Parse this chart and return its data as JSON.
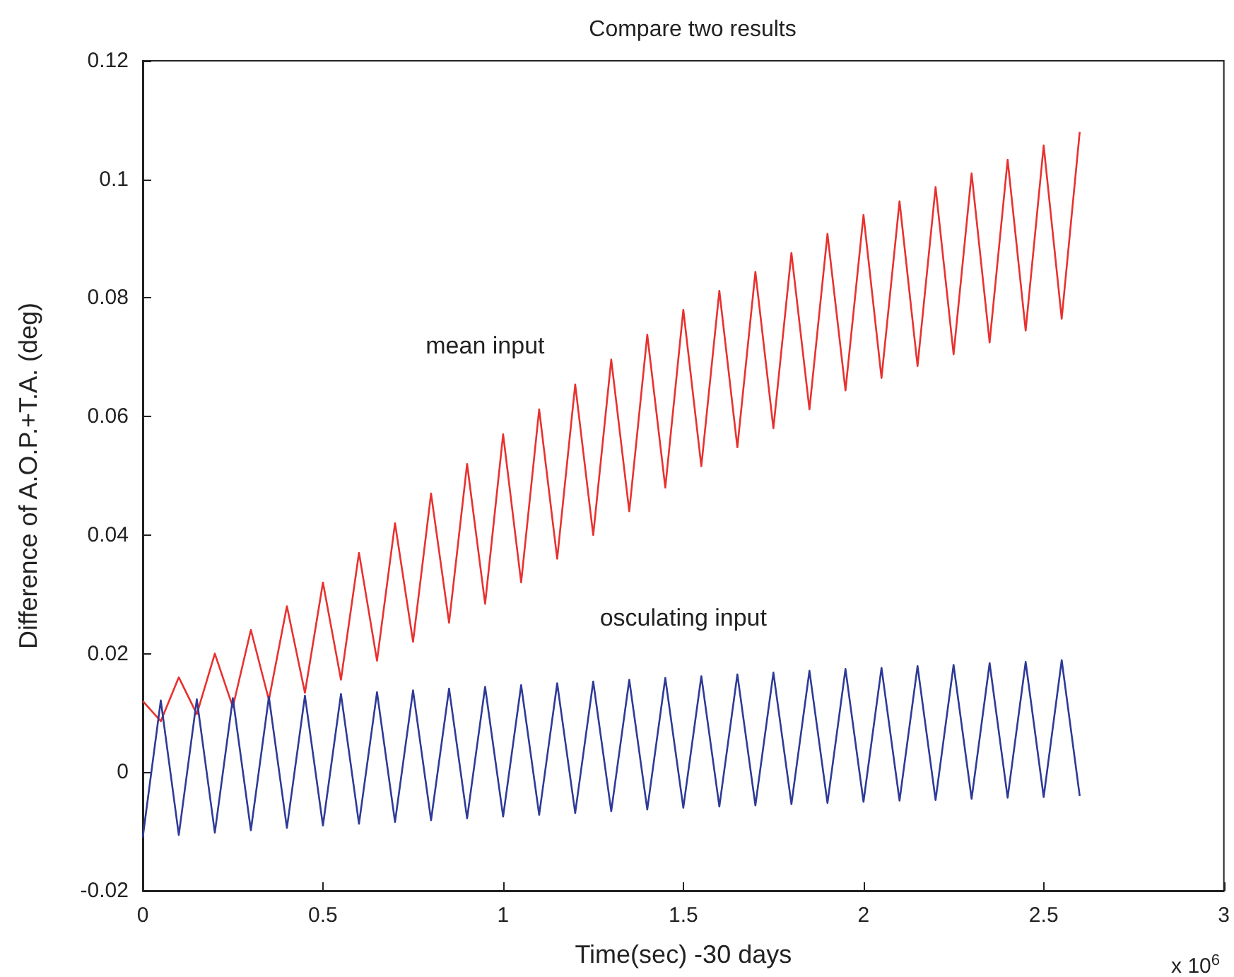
{
  "chart_data": {
    "type": "line",
    "title": "Compare two results",
    "xlabel": "Time(sec) -30 days",
    "ylabel": "Difference of A.O.P.+T.A. (deg)",
    "annotations": [
      "x 10$^{6}$"
    ],
    "x": [
      0,
      0.05,
      0.1,
      0.15,
      0.2,
      0.25,
      0.3,
      0.35,
      0.4,
      0.45,
      0.5,
      0.55,
      0.6,
      0.65,
      0.7,
      0.75,
      0.8,
      0.85,
      0.9,
      0.95,
      1,
      1.05,
      1.1,
      1.15,
      1.2,
      1.25,
      1.3,
      1.35,
      1.4,
      1.45,
      1.5,
      1.55,
      1.6,
      1.65,
      1.7,
      1.75,
      1.8,
      1.85,
      1.9,
      1.95,
      2,
      2.05,
      2.1,
      2.15,
      2.2,
      2.25,
      2.3,
      2.35,
      2.4,
      2.45,
      2.5,
      2.55,
      2.6
    ],
    "series": [
      {
        "name": "mean input",
        "color": "#e8312f",
        "values": [
          0.012,
          0.0086,
          0.016,
          0.0098,
          0.02,
          0.011,
          0.024,
          0.0122,
          0.028,
          0.0134,
          0.032,
          0.0156,
          0.037,
          0.0188,
          0.042,
          0.022,
          0.047,
          0.0252,
          0.052,
          0.0284,
          0.057,
          0.032,
          0.0612,
          0.036,
          0.0654,
          0.04,
          0.0696,
          0.044,
          0.0738,
          0.048,
          0.078,
          0.0516,
          0.0812,
          0.0548,
          0.0844,
          0.058,
          0.0876,
          0.0612,
          0.0908,
          0.0644,
          0.094,
          0.0665,
          0.0963,
          0.0685,
          0.0987,
          0.0705,
          0.101,
          0.0725,
          0.1033,
          0.0745,
          0.1057,
          0.0765,
          0.108
        ]
      },
      {
        "name": "osculating input",
        "color": "#2e3a97",
        "values": [
          -0.011,
          0.0121,
          -0.0106,
          0.0123,
          -0.0102,
          0.0125,
          -0.0098,
          0.0127,
          -0.0094,
          0.0129,
          -0.009,
          0.0132,
          -0.0087,
          0.0135,
          -0.0084,
          0.0138,
          -0.0081,
          0.0141,
          -0.0078,
          0.0144,
          -0.0075,
          0.0147,
          -0.0072,
          0.015,
          -0.0069,
          0.0153,
          -0.0066,
          0.0156,
          -0.0063,
          0.0159,
          -0.006,
          0.0162,
          -0.0058,
          0.0165,
          -0.0056,
          0.0168,
          -0.0054,
          0.0171,
          -0.0052,
          0.0174,
          -0.005,
          0.0176,
          -0.0048,
          0.0179,
          -0.0047,
          0.0181,
          -0.0045,
          0.0184,
          -0.0043,
          0.0186,
          -0.0042,
          0.0189,
          -0.004
        ]
      }
    ],
    "xlim": [
      0,
      3
    ],
    "xticks": [
      0,
      0.5,
      1,
      1.5,
      2,
      2.5,
      3
    ],
    "ylim": [
      -0.02,
      0.12
    ],
    "yticks": [
      -0.02,
      0,
      0.02,
      0.04,
      0.06,
      0.08,
      0.1,
      0.12
    ],
    "grid": false,
    "legend": false,
    "marker": "none",
    "line_style": "solid"
  }
}
